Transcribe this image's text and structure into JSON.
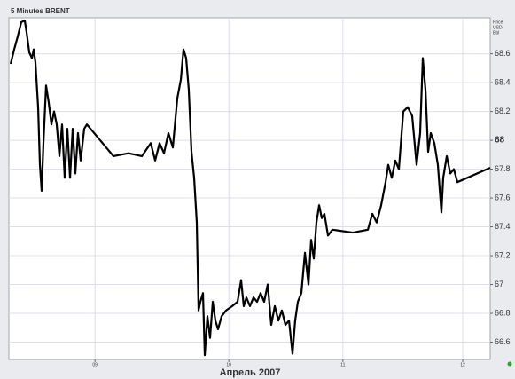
{
  "chart_data": {
    "type": "line",
    "title": "5 Minutes BRENT",
    "axis_units": [
      "Price",
      "USD",
      "Bbl"
    ],
    "x_label": "Апрель 2007",
    "xlim": [
      0,
      100
    ],
    "xticks": [
      {
        "value": 17.9,
        "label": "09"
      },
      {
        "value": 45.7,
        "label": "10"
      },
      {
        "value": 69.4,
        "label": "11"
      },
      {
        "value": 94.3,
        "label": "12"
      }
    ],
    "ylim": [
      66.48,
      68.85
    ],
    "yticks": [
      66.6,
      66.8,
      67,
      67.2,
      67.4,
      67.6,
      67.8,
      68,
      68.2,
      68.4,
      68.6
    ],
    "grid": true,
    "color": "#000000",
    "x": [
      0.37,
      1.1,
      1.84,
      2.58,
      3.31,
      3.68,
      4.24,
      4.79,
      5.16,
      5.52,
      6.08,
      6.45,
      6.81,
      7.18,
      7.73,
      8.29,
      8.84,
      9.39,
      9.94,
      10.5,
      11.05,
      11.6,
      12.15,
      12.71,
      13.26,
      13.81,
      14.36,
      14.92,
      15.65,
      16.21,
      21.73,
      24.86,
      27.62,
      29.47,
      30.39,
      31.31,
      32.23,
      33.15,
      34.07,
      34.99,
      35.73,
      36.28,
      36.83,
      37.38,
      37.94,
      38.49,
      39.04,
      39.41,
      39.78,
      40.33,
      40.7,
      41.25,
      41.8,
      42.36,
      42.91,
      43.46,
      44.2,
      45.12,
      46.41,
      47.51,
      48.25,
      48.8,
      49.35,
      50.09,
      50.83,
      51.57,
      52.3,
      53.04,
      53.78,
      54.51,
      55.25,
      55.99,
      56.72,
      57.46,
      58.2,
      58.93,
      59.48,
      60.04,
      60.77,
      61.51,
      62.25,
      62.8,
      63.35,
      63.9,
      64.46,
      65.01,
      65.56,
      66.3,
      67.22,
      71.45,
      74.59,
      75.51,
      76.43,
      77.35,
      78.27,
      78.82,
      79.56,
      80.29,
      81.03,
      81.95,
      82.87,
      83.79,
      84.71,
      85.45,
      86.0,
      86.56,
      87.11,
      87.66,
      88.4,
      89.13,
      89.87,
      90.24,
      90.98,
      91.71,
      92.45,
      93.19,
      100
    ],
    "values": [
      68.53,
      68.63,
      68.72,
      68.82,
      68.83,
      68.75,
      68.61,
      68.57,
      68.63,
      68.54,
      68.23,
      67.83,
      67.65,
      67.98,
      68.38,
      68.26,
      68.11,
      68.2,
      68.11,
      67.89,
      68.11,
      67.74,
      68.08,
      67.74,
      68.08,
      67.77,
      68.05,
      67.86,
      68.08,
      68.11,
      67.89,
      67.91,
      67.89,
      67.98,
      67.86,
      67.98,
      67.91,
      68.05,
      67.95,
      68.29,
      68.42,
      68.63,
      68.57,
      68.35,
      67.92,
      67.74,
      67.43,
      66.82,
      66.88,
      66.94,
      66.51,
      66.78,
      66.63,
      66.88,
      66.75,
      66.69,
      66.78,
      66.82,
      66.85,
      66.88,
      67.03,
      66.85,
      66.91,
      66.85,
      66.91,
      66.88,
      66.94,
      66.88,
      67.0,
      66.72,
      66.85,
      66.75,
      66.82,
      66.72,
      66.75,
      66.52,
      66.75,
      66.88,
      66.94,
      67.22,
      67.0,
      67.31,
      67.18,
      67.43,
      67.55,
      67.46,
      67.49,
      67.34,
      67.38,
      67.36,
      67.38,
      67.49,
      67.43,
      67.55,
      67.71,
      67.83,
      67.74,
      67.86,
      67.8,
      68.2,
      68.23,
      68.17,
      67.83,
      68.05,
      68.57,
      68.35,
      67.92,
      68.05,
      67.98,
      67.83,
      67.5,
      67.74,
      67.89,
      67.77,
      67.8,
      67.71,
      67.81
    ]
  }
}
